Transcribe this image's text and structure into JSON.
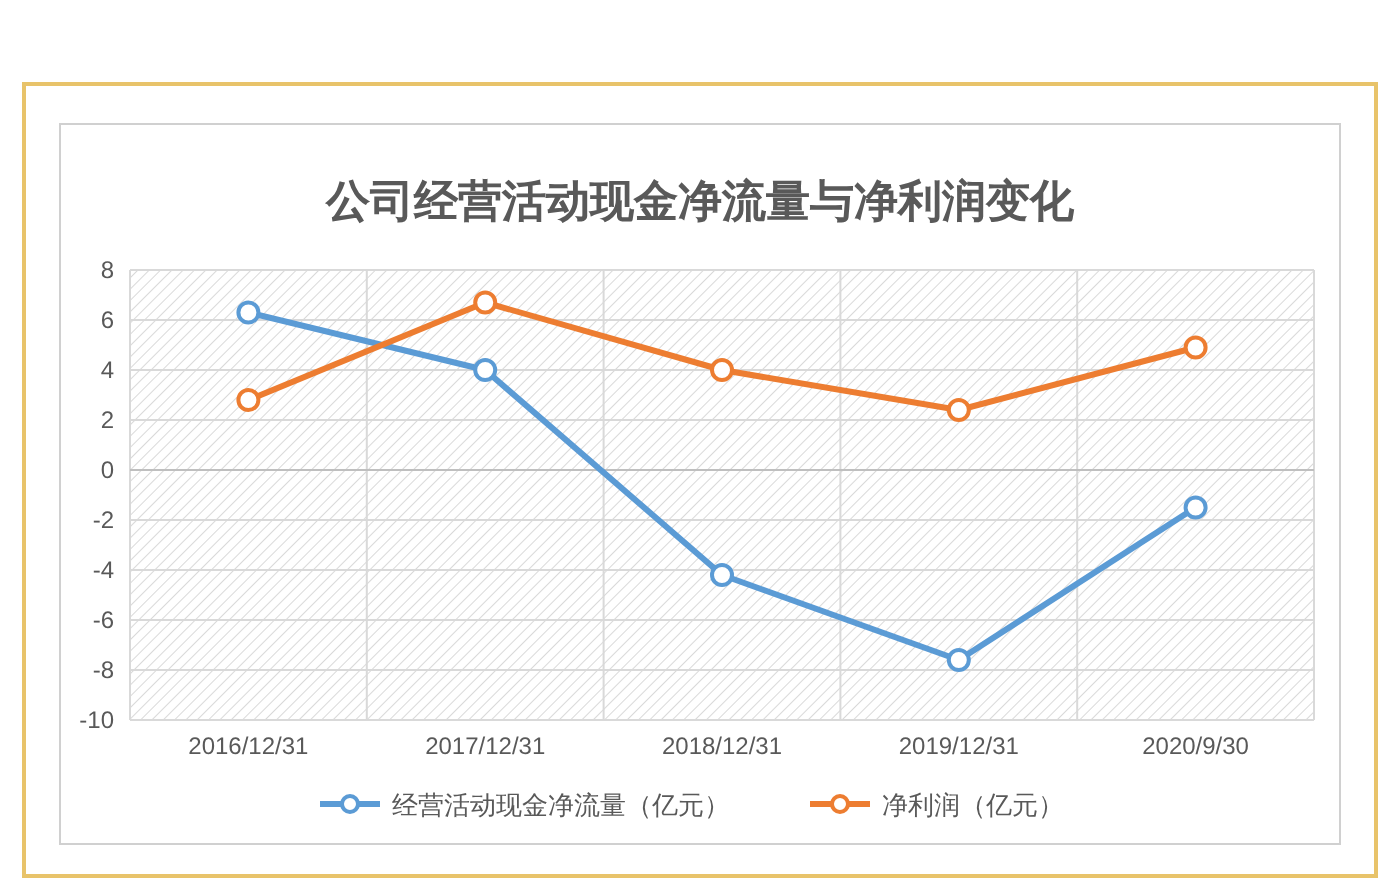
{
  "chart_data": {
    "type": "line",
    "title": "公司经营活动现金净流量与净利润变化",
    "categories": [
      "2016/12/31",
      "2017/12/31",
      "2018/12/31",
      "2019/12/31",
      "2020/9/30"
    ],
    "series": [
      {
        "name": "经营活动现金净流量（亿元）",
        "color": "#5b9bd5",
        "values": [
          6.3,
          4.0,
          -4.2,
          -7.6,
          -1.5
        ]
      },
      {
        "name": "净利润（亿元）",
        "color": "#ed7d31",
        "values": [
          2.8,
          6.7,
          4.0,
          2.4,
          4.9
        ]
      }
    ],
    "ylim": [
      -10,
      8
    ],
    "yticks": [
      -10,
      -8,
      -6,
      -4,
      -2,
      0,
      2,
      4,
      6,
      8
    ],
    "grid": true,
    "legend": "bottom",
    "marker": "circle",
    "line_style": "solid"
  }
}
